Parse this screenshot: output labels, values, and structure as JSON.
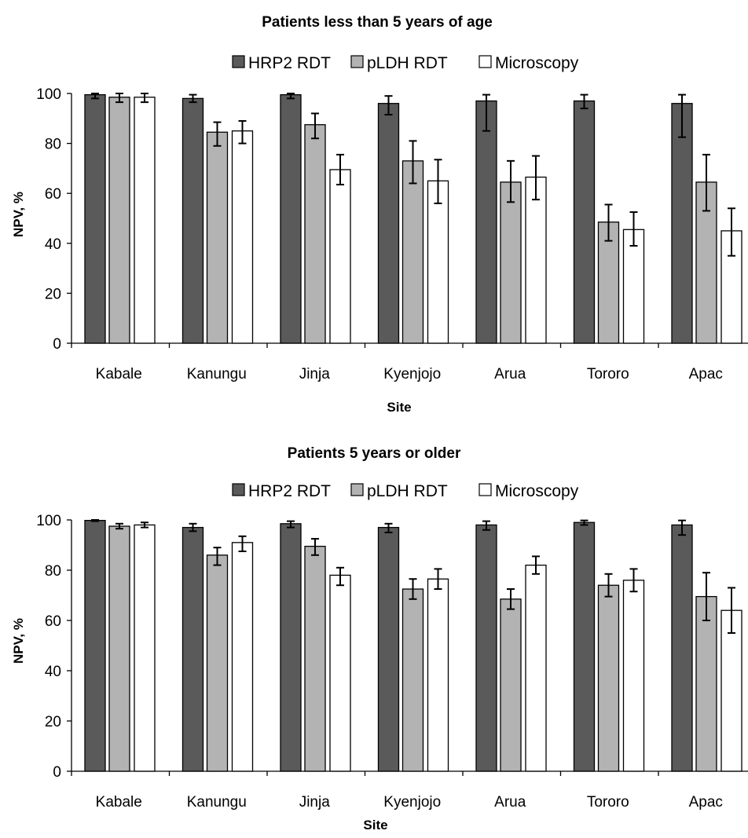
{
  "chart_data": [
    {
      "type": "bar",
      "title": "Patients less than 5 years of age",
      "xlabel": "Site",
      "ylabel": "NPV, %",
      "ylim": [
        0,
        100
      ],
      "yticks": [
        0,
        20,
        40,
        60,
        80,
        100
      ],
      "categories": [
        "Kabale",
        "Kanungu",
        "Jinja",
        "Kyenjojo",
        "Arua",
        "Tororo",
        "Apac"
      ],
      "legend_position": "top-center",
      "series": [
        {
          "name": "HRP2 RDT",
          "color": "#5a5a5a",
          "values": [
            99.5,
            98,
            99.5,
            96,
            97,
            97,
            96
          ],
          "error_low": [
            98,
            96.5,
            98,
            91.5,
            85,
            94,
            82.5
          ],
          "error_high": [
            100,
            99.5,
            100,
            99,
            99.5,
            99.5,
            99.5
          ]
        },
        {
          "name": "pLDH RDT",
          "color": "#b3b3b3",
          "values": [
            98.5,
            84.5,
            87.5,
            73,
            64.5,
            48.5,
            64.5
          ],
          "error_low": [
            96.5,
            79,
            82,
            64,
            56.5,
            41,
            53
          ],
          "error_high": [
            100,
            88.5,
            92,
            81,
            73,
            55.5,
            75.5
          ]
        },
        {
          "name": "Microscopy",
          "color": "#ffffff",
          "values": [
            98.5,
            85,
            69.5,
            65,
            66.5,
            45.5,
            45
          ],
          "error_low": [
            96.5,
            80,
            63.5,
            56,
            57.5,
            39,
            35
          ],
          "error_high": [
            100,
            89,
            75.5,
            73.5,
            75,
            52.5,
            54
          ]
        }
      ]
    },
    {
      "type": "bar",
      "title": "Patients 5 years or older",
      "xlabel": "Site",
      "ylabel": "NPV, %",
      "ylim": [
        0,
        100
      ],
      "yticks": [
        0,
        20,
        40,
        60,
        80,
        100
      ],
      "categories": [
        "Kabale",
        "Kanungu",
        "Jinja",
        "Kyenjojo",
        "Arua",
        "Tororo",
        "Apac"
      ],
      "legend_position": "top-center",
      "series": [
        {
          "name": "HRP2 RDT",
          "color": "#5a5a5a",
          "values": [
            99.8,
            97,
            98.5,
            97,
            98,
            99,
            98
          ],
          "error_low": [
            99.5,
            95.5,
            97,
            95,
            96,
            98,
            94
          ],
          "error_high": [
            100,
            98.5,
            99.5,
            98.5,
            99.5,
            99.8,
            99.8
          ]
        },
        {
          "name": "pLDH RDT",
          "color": "#b3b3b3",
          "values": [
            97.5,
            86,
            89.5,
            72.5,
            68.5,
            74,
            69.5
          ],
          "error_low": [
            96.5,
            82,
            86,
            68.5,
            64.5,
            69.5,
            60
          ],
          "error_high": [
            98.5,
            89,
            92.5,
            76.5,
            72.5,
            78.5,
            79
          ]
        },
        {
          "name": "Microscopy",
          "color": "#ffffff",
          "values": [
            98,
            91,
            78,
            76.5,
            82,
            76,
            64
          ],
          "error_low": [
            97,
            87.5,
            74,
            72.5,
            78.5,
            71.5,
            55
          ],
          "error_high": [
            99,
            93.5,
            81,
            80.5,
            85.5,
            80.5,
            73
          ]
        }
      ]
    }
  ]
}
